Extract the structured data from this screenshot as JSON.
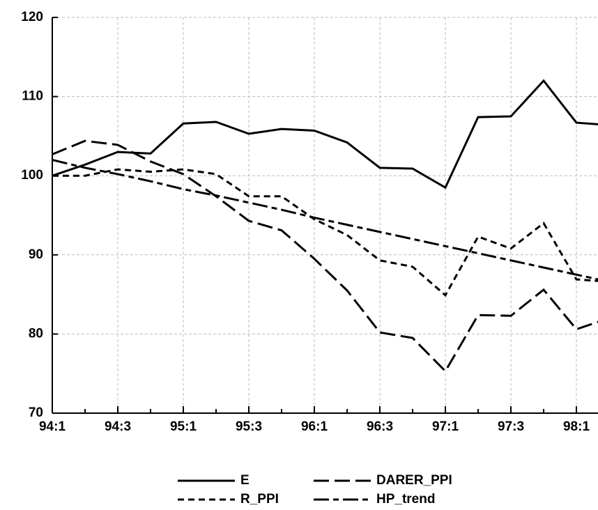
{
  "chart_data": {
    "type": "line",
    "categories": [
      "94:1",
      null,
      "94:3",
      null,
      "95:1",
      null,
      "95:3",
      null,
      "96:1",
      null,
      "96:3",
      null,
      "97:1",
      null,
      "97:3",
      null,
      "98:1",
      null
    ],
    "ylim": [
      70,
      120
    ],
    "yticks": [
      70,
      80,
      90,
      100,
      110,
      120
    ],
    "grid": true,
    "legend": "bottom",
    "series": [
      {
        "name": "E",
        "color": "#000000",
        "dash": "solid",
        "values": [
          100,
          101.4,
          103,
          102.8,
          106.6,
          106.8,
          105.3,
          105.9,
          105.7,
          104.2,
          101,
          100.9,
          98.5,
          107.4,
          107.5,
          112,
          106.7,
          106.4
        ]
      },
      {
        "name": "DARER_PPI",
        "color": "#000000",
        "dash": "longdash",
        "values": [
          102.7,
          104.4,
          103.9,
          101.8,
          100.2,
          97.4,
          94.3,
          93.1,
          89.5,
          85.5,
          80.2,
          79.5,
          75.3,
          82.4,
          82.3,
          85.6,
          80.6,
          82
        ]
      },
      {
        "name": "R_PPI",
        "color": "#000000",
        "dash": "dash",
        "values": [
          100,
          100,
          100.8,
          100.5,
          100.8,
          100.2,
          97.4,
          97.4,
          94.5,
          92.5,
          89.3,
          88.5,
          84.9,
          92.3,
          90.8,
          94,
          86.9,
          86.6
        ]
      },
      {
        "name": "HP_trend",
        "color": "#000000",
        "dash": "dashdot",
        "values": [
          102,
          101,
          100.2,
          99.3,
          98.3,
          97.5,
          96.6,
          95.7,
          94.7,
          93.8,
          92.9,
          92,
          91.1,
          90.2,
          89.3,
          88.4,
          87.5,
          86.6
        ]
      }
    ]
  }
}
